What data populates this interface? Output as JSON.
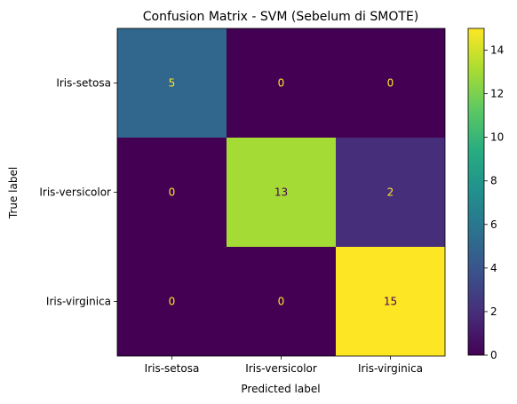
{
  "chart_data": {
    "type": "heatmap",
    "title": "Confusion Matrix - SVM (Sebelum di SMOTE)",
    "xlabel": "Predicted label",
    "ylabel": "True label",
    "x_categories": [
      "Iris-setosa",
      "Iris-versicolor",
      "Iris-virginica"
    ],
    "y_categories": [
      "Iris-setosa",
      "Iris-versicolor",
      "Iris-virginica"
    ],
    "values": [
      [
        5,
        0,
        0
      ],
      [
        0,
        13,
        2
      ],
      [
        0,
        0,
        15
      ]
    ],
    "colormap": "viridis",
    "colorbar": {
      "range": [
        0,
        15
      ],
      "ticks": [
        0,
        2,
        4,
        6,
        8,
        10,
        12,
        14
      ]
    },
    "annotation_colors": {
      "on_dark": "#fde725",
      "on_light": "#440154"
    }
  }
}
